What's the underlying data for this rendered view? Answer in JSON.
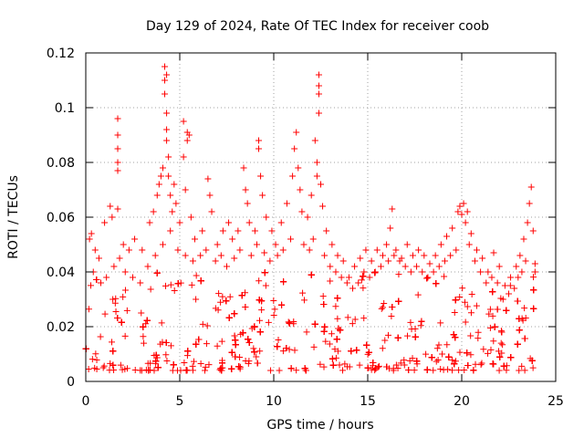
{
  "chart_data": {
    "type": "scatter",
    "title": "Day 129 of 2024, Rate Of TEC Index for receiver coob",
    "xlabel": "GPS time / hours",
    "ylabel": "ROTI / TECUs",
    "xlim": [
      0,
      25
    ],
    "ylim": [
      0,
      0.12
    ],
    "x_ticks": [
      0,
      5,
      10,
      15,
      20,
      25
    ],
    "x_tick_labels": [
      "0",
      "5",
      "10",
      "15",
      "20",
      "25"
    ],
    "y_ticks": [
      0,
      0.02,
      0.04,
      0.06,
      0.08,
      0.1,
      0.12
    ],
    "y_tick_labels": [
      "0",
      "0.02",
      "0.04",
      "0.06",
      "0.08",
      "0.1",
      "0.12"
    ],
    "grid": true,
    "marker": "+",
    "color": "#ff0000",
    "series": [
      {
        "name": "ROTI",
        "points": [
          [
            0.2,
            0.052
          ],
          [
            0.3,
            0.054
          ],
          [
            0.5,
            0.048
          ],
          [
            0.7,
            0.045
          ],
          [
            1.0,
            0.058
          ],
          [
            1.3,
            0.064
          ],
          [
            1.4,
            0.06
          ],
          [
            1.7,
            0.096
          ],
          [
            1.7,
            0.09
          ],
          [
            1.7,
            0.085
          ],
          [
            1.7,
            0.08
          ],
          [
            1.7,
            0.077
          ],
          [
            1.7,
            0.063
          ],
          [
            1.8,
            0.045
          ],
          [
            2.0,
            0.05
          ],
          [
            2.3,
            0.048
          ],
          [
            2.6,
            0.052
          ],
          [
            3.0,
            0.048
          ],
          [
            3.4,
            0.058
          ],
          [
            3.6,
            0.062
          ],
          [
            3.8,
            0.068
          ],
          [
            3.9,
            0.072
          ],
          [
            4.0,
            0.075
          ],
          [
            4.1,
            0.078
          ],
          [
            4.2,
            0.115
          ],
          [
            4.2,
            0.11
          ],
          [
            4.2,
            0.105
          ],
          [
            4.3,
            0.112
          ],
          [
            4.3,
            0.098
          ],
          [
            4.3,
            0.092
          ],
          [
            4.3,
            0.088
          ],
          [
            4.4,
            0.082
          ],
          [
            4.4,
            0.075
          ],
          [
            4.5,
            0.068
          ],
          [
            4.6,
            0.062
          ],
          [
            4.7,
            0.072
          ],
          [
            4.8,
            0.065
          ],
          [
            5.0,
            0.058
          ],
          [
            5.2,
            0.095
          ],
          [
            5.2,
            0.082
          ],
          [
            5.3,
            0.07
          ],
          [
            5.4,
            0.091
          ],
          [
            5.4,
            0.088
          ],
          [
            5.5,
            0.09
          ],
          [
            5.6,
            0.06
          ],
          [
            5.8,
            0.052
          ],
          [
            6.2,
            0.055
          ],
          [
            6.5,
            0.074
          ],
          [
            6.6,
            0.068
          ],
          [
            6.7,
            0.062
          ],
          [
            7.0,
            0.05
          ],
          [
            7.3,
            0.055
          ],
          [
            7.6,
            0.058
          ],
          [
            7.8,
            0.052
          ],
          [
            8.1,
            0.055
          ],
          [
            8.4,
            0.078
          ],
          [
            8.5,
            0.07
          ],
          [
            8.6,
            0.065
          ],
          [
            8.7,
            0.058
          ],
          [
            9.0,
            0.055
          ],
          [
            9.2,
            0.088
          ],
          [
            9.2,
            0.085
          ],
          [
            9.3,
            0.075
          ],
          [
            9.4,
            0.068
          ],
          [
            9.6,
            0.06
          ],
          [
            9.9,
            0.055
          ],
          [
            10.1,
            0.05
          ],
          [
            10.4,
            0.058
          ],
          [
            10.7,
            0.065
          ],
          [
            11.0,
            0.075
          ],
          [
            11.1,
            0.085
          ],
          [
            11.2,
            0.091
          ],
          [
            11.3,
            0.078
          ],
          [
            11.4,
            0.07
          ],
          [
            11.5,
            0.062
          ],
          [
            11.8,
            0.06
          ],
          [
            12.0,
            0.068
          ],
          [
            12.2,
            0.088
          ],
          [
            12.3,
            0.08
          ],
          [
            12.3,
            0.075
          ],
          [
            12.4,
            0.112
          ],
          [
            12.4,
            0.108
          ],
          [
            12.4,
            0.105
          ],
          [
            12.4,
            0.098
          ],
          [
            12.5,
            0.072
          ],
          [
            12.6,
            0.064
          ],
          [
            12.8,
            0.055
          ],
          [
            13.1,
            0.05
          ],
          [
            13.4,
            0.046
          ],
          [
            13.7,
            0.044
          ],
          [
            14.0,
            0.038
          ],
          [
            14.3,
            0.042
          ],
          [
            14.6,
            0.045
          ],
          [
            14.9,
            0.048
          ],
          [
            15.2,
            0.044
          ],
          [
            15.5,
            0.048
          ],
          [
            15.8,
            0.046
          ],
          [
            16.0,
            0.05
          ],
          [
            16.2,
            0.056
          ],
          [
            16.3,
            0.063
          ],
          [
            16.5,
            0.048
          ],
          [
            16.8,
            0.045
          ],
          [
            17.1,
            0.05
          ],
          [
            17.4,
            0.046
          ],
          [
            17.7,
            0.048
          ],
          [
            18.0,
            0.046
          ],
          [
            18.3,
            0.043
          ],
          [
            18.6,
            0.046
          ],
          [
            18.9,
            0.05
          ],
          [
            19.2,
            0.053
          ],
          [
            19.5,
            0.056
          ],
          [
            19.8,
            0.062
          ],
          [
            19.9,
            0.064
          ],
          [
            20.0,
            0.061
          ],
          [
            20.1,
            0.065
          ],
          [
            20.2,
            0.058
          ],
          [
            20.3,
            0.062
          ],
          [
            20.5,
            0.054
          ],
          [
            20.8,
            0.048
          ],
          [
            21.1,
            0.045
          ],
          [
            21.4,
            0.04
          ],
          [
            21.7,
            0.047
          ],
          [
            22.0,
            0.042
          ],
          [
            22.3,
            0.035
          ],
          [
            22.6,
            0.038
          ],
          [
            22.9,
            0.042
          ],
          [
            23.1,
            0.046
          ],
          [
            23.3,
            0.052
          ],
          [
            23.5,
            0.058
          ],
          [
            23.6,
            0.065
          ],
          [
            23.7,
            0.071
          ],
          [
            23.8,
            0.055
          ],
          [
            23.9,
            0.043
          ],
          [
            0.4,
            0.04
          ],
          [
            0.8,
            0.036
          ],
          [
            1.1,
            0.038
          ],
          [
            1.5,
            0.042
          ],
          [
            2.1,
            0.04
          ],
          [
            2.5,
            0.038
          ],
          [
            2.9,
            0.036
          ],
          [
            3.3,
            0.042
          ],
          [
            3.7,
            0.046
          ],
          [
            4.1,
            0.05
          ],
          [
            4.5,
            0.055
          ],
          [
            4.9,
            0.048
          ],
          [
            5.3,
            0.046
          ],
          [
            5.7,
            0.044
          ],
          [
            6.1,
            0.046
          ],
          [
            6.4,
            0.048
          ],
          [
            6.9,
            0.044
          ],
          [
            7.2,
            0.046
          ],
          [
            7.5,
            0.042
          ],
          [
            7.9,
            0.045
          ],
          [
            8.2,
            0.048
          ],
          [
            8.8,
            0.046
          ],
          [
            9.1,
            0.05
          ],
          [
            9.5,
            0.047
          ],
          [
            9.8,
            0.044
          ],
          [
            10.2,
            0.046
          ],
          [
            10.5,
            0.048
          ],
          [
            10.9,
            0.052
          ],
          [
            11.6,
            0.05
          ],
          [
            11.9,
            0.048
          ],
          [
            12.1,
            0.052
          ],
          [
            12.7,
            0.046
          ],
          [
            13.0,
            0.042
          ],
          [
            13.3,
            0.04
          ],
          [
            13.6,
            0.038
          ],
          [
            13.9,
            0.036
          ],
          [
            14.2,
            0.034
          ],
          [
            14.5,
            0.036
          ],
          [
            14.8,
            0.04
          ],
          [
            15.1,
            0.038
          ],
          [
            15.4,
            0.04
          ],
          [
            15.7,
            0.042
          ],
          [
            16.1,
            0.044
          ],
          [
            16.4,
            0.046
          ],
          [
            16.7,
            0.044
          ],
          [
            17.0,
            0.042
          ],
          [
            17.3,
            0.04
          ],
          [
            17.6,
            0.042
          ],
          [
            17.9,
            0.04
          ],
          [
            18.2,
            0.038
          ],
          [
            18.5,
            0.04
          ],
          [
            18.8,
            0.042
          ],
          [
            19.1,
            0.044
          ],
          [
            19.4,
            0.046
          ],
          [
            19.7,
            0.048
          ],
          [
            20.4,
            0.05
          ],
          [
            20.7,
            0.044
          ],
          [
            21.0,
            0.04
          ],
          [
            21.3,
            0.036
          ],
          [
            21.6,
            0.038
          ],
          [
            21.9,
            0.036
          ],
          [
            22.2,
            0.03
          ],
          [
            22.5,
            0.032
          ],
          [
            22.8,
            0.034
          ],
          [
            23.0,
            0.038
          ],
          [
            23.2,
            0.04
          ],
          [
            23.4,
            0.044
          ],
          [
            23.9,
            0.04
          ]
        ]
      }
    ]
  }
}
